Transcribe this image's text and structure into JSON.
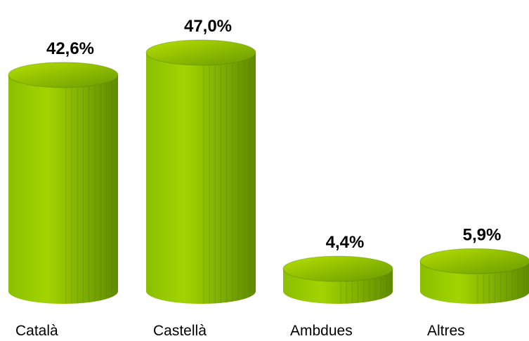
{
  "chart_data": {
    "type": "bar",
    "style": "3d-cylinder",
    "categories": [
      "Català",
      "Castellà",
      "Ambdues",
      "Altres"
    ],
    "values": [
      42.6,
      47.0,
      4.4,
      5.9
    ],
    "value_labels": [
      "42,6%",
      "47,0%",
      "4,4%",
      "5,9%"
    ],
    "unit": "%",
    "grid": false,
    "legend": "none",
    "colors": {
      "cylinder_light": "#a3d400",
      "cylinder_mid": "#8bbf00",
      "cylinder_dark": "#5f8a00",
      "top_light": "#b5e000",
      "top_dark": "#6a9a00",
      "stripe": "#4f7a00"
    }
  }
}
